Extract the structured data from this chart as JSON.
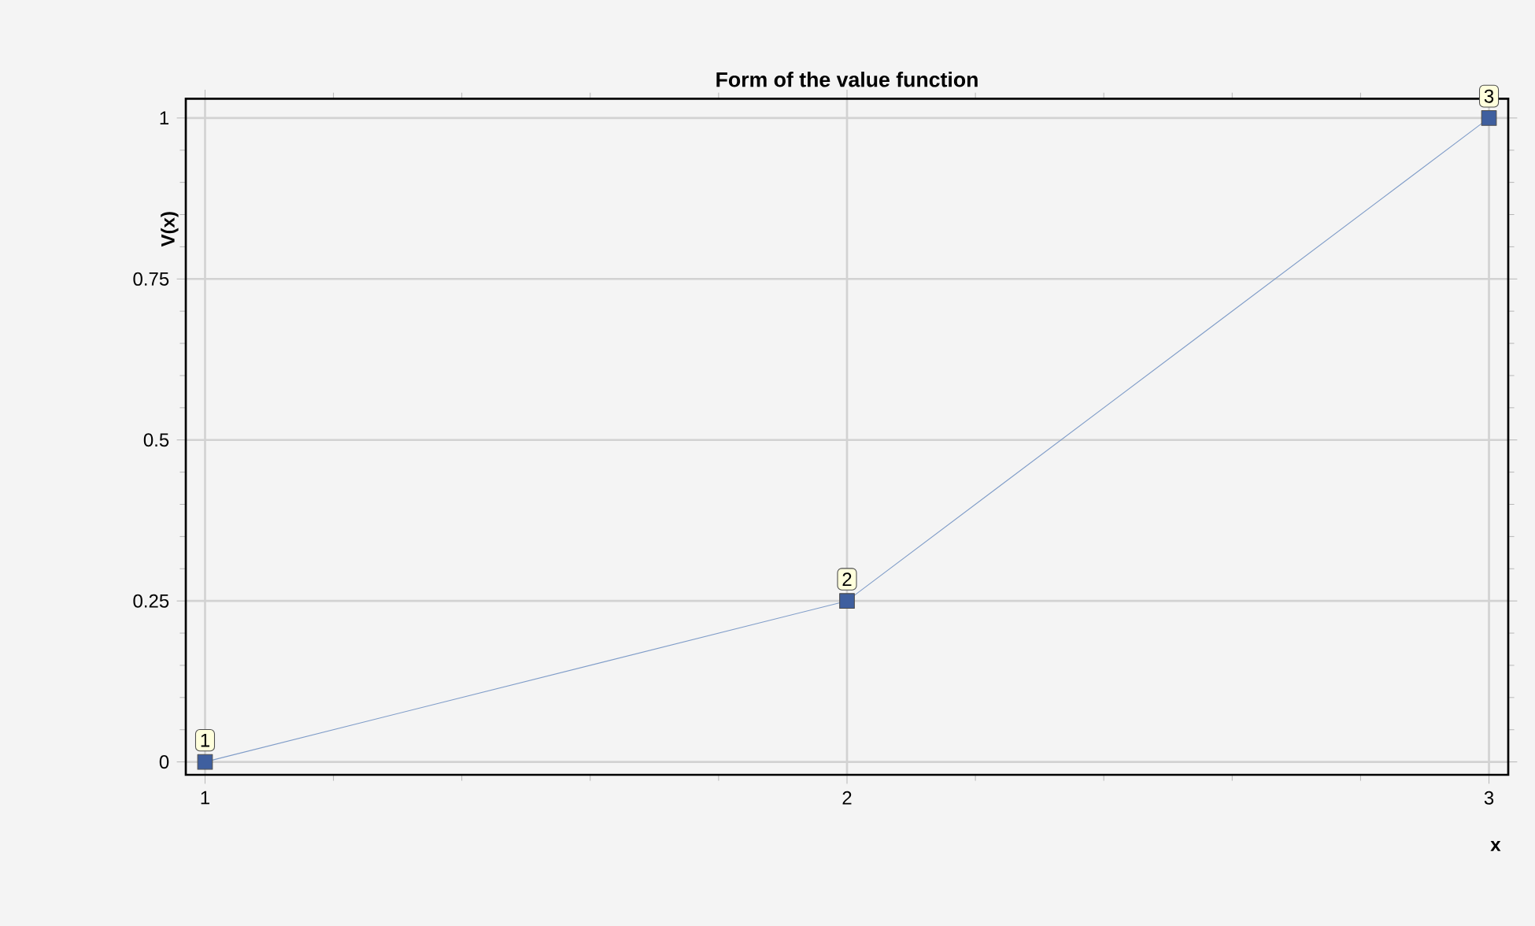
{
  "chart_data": {
    "type": "line",
    "title": "Form of the value function",
    "xlabel": "x",
    "ylabel": "V(x)",
    "x": [
      1,
      2,
      3
    ],
    "series": [
      {
        "color": "#3f5f9f",
        "values": [
          0,
          0.25,
          1
        ]
      }
    ],
    "xlim": [
      0.97,
      3.03
    ],
    "ylim": [
      -0.02,
      1.03
    ],
    "xticks": [
      1,
      2,
      3
    ],
    "yticks": [
      0,
      0.25,
      0.5,
      0.75,
      1
    ],
    "grid": true,
    "marker": "square",
    "line_style": "solid",
    "annotations": [
      {
        "text": "1",
        "x": 1,
        "y": 0
      },
      {
        "text": "2",
        "x": 2,
        "y": 0.25
      },
      {
        "text": "3",
        "x": 3,
        "y": 1
      }
    ]
  }
}
